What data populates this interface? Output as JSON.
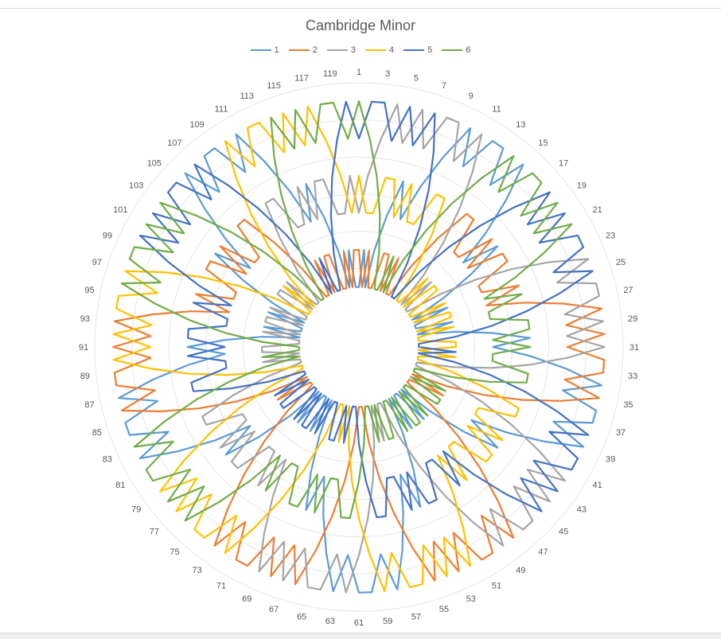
{
  "chart_data": {
    "type": "radar",
    "title": "Cambridge Minor",
    "axis_labels": [
      "1",
      "3",
      "5",
      "7",
      "9",
      "11",
      "13",
      "15",
      "17",
      "19",
      "21",
      "23",
      "25",
      "27",
      "29",
      "31",
      "33",
      "35",
      "37",
      "39",
      "41",
      "43",
      "45",
      "47",
      "49",
      "51",
      "53",
      "55",
      "57",
      "59",
      "61",
      "63",
      "65",
      "67",
      "69",
      "71",
      "73",
      "75",
      "77",
      "79",
      "81",
      "83",
      "85",
      "87",
      "89",
      "91",
      "93",
      "95",
      "97",
      "99",
      "101",
      "103",
      "105",
      "107",
      "109",
      "111",
      "113",
      "115",
      "117",
      "119"
    ],
    "categories_count": 120,
    "r_range": [
      0,
      6
    ],
    "legend_position": "top",
    "grid": true,
    "series": [
      {
        "name": "1",
        "color": "#5B9BD5"
      },
      {
        "name": "2",
        "color": "#ED7D31"
      },
      {
        "name": "3",
        "color": "#A5A5A5"
      },
      {
        "name": "4",
        "color": "#FFC000"
      },
      {
        "name": "5",
        "color": "#4472C4"
      },
      {
        "name": "6",
        "color": "#70AD47"
      }
    ]
  }
}
